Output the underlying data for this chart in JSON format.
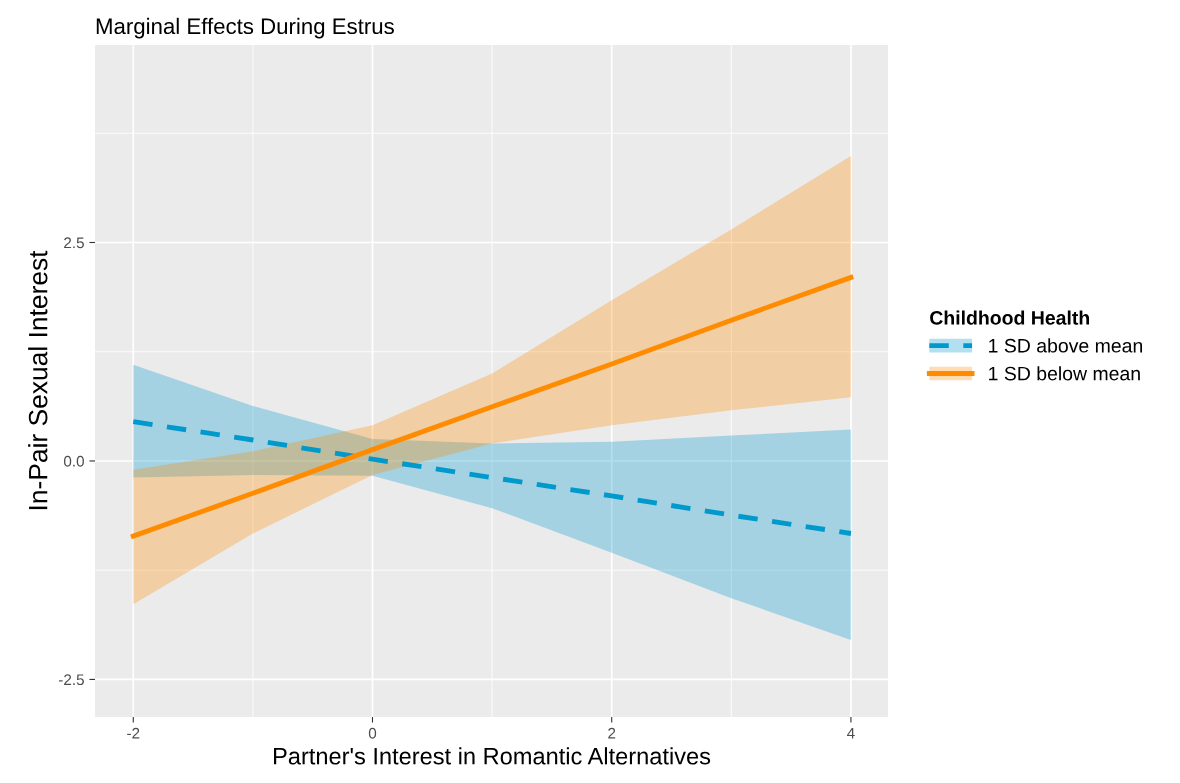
{
  "chart_data": {
    "type": "line",
    "title": "Marginal Effects During Estrus",
    "xlabel": "Partner's Interest in Romantic Alternatives",
    "ylabel": "In-Pair Sexual Interest",
    "legend_title": "Childhood Health",
    "x": [
      -2,
      -1,
      0,
      1,
      2,
      3,
      4
    ],
    "series": [
      {
        "name": "1 SD above mean",
        "color": "#0099cc",
        "line_style": "dashed",
        "values": [
          0.45,
          0.24,
          0.02,
          -0.19,
          -0.4,
          -0.62,
          -0.83
        ],
        "lower": [
          -0.19,
          -0.16,
          -0.17,
          -0.54,
          -1.05,
          -1.57,
          -2.05
        ],
        "upper": [
          1.1,
          0.63,
          0.25,
          0.2,
          0.22,
          0.29,
          0.36
        ]
      },
      {
        "name": "1 SD below mean",
        "color": "#ff8c00",
        "line_style": "solid",
        "values": [
          -0.86,
          -0.37,
          0.13,
          0.62,
          1.11,
          1.61,
          2.1
        ],
        "lower": [
          -1.64,
          -0.83,
          -0.16,
          0.2,
          0.41,
          0.58,
          0.73
        ],
        "upper": [
          -0.1,
          0.11,
          0.41,
          1.0,
          1.84,
          2.65,
          3.49
        ]
      }
    ],
    "xlim": [
      -2.32,
      4.31
    ],
    "ylim": [
      -2.93,
      4.76
    ],
    "xticks": [
      -2,
      0,
      2,
      4
    ],
    "yticks": [
      -2.5,
      {
        "value": 0,
        "label": "0.0"
      },
      2.5
    ],
    "grid": true,
    "legend": "right",
    "marker": "none"
  }
}
